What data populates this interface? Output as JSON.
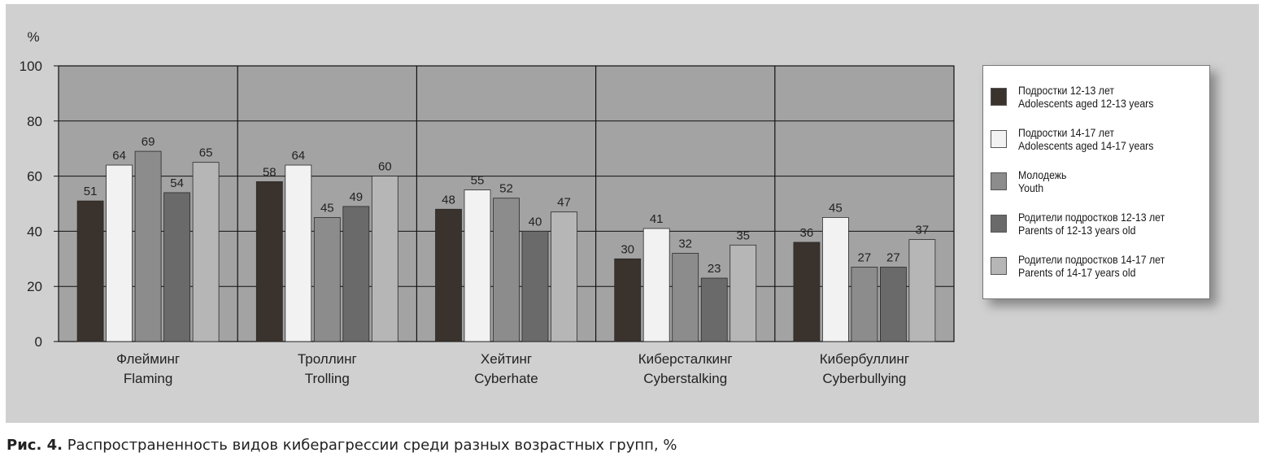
{
  "caption": {
    "label": "Рис. 4.",
    "text": "Распространенность видов киберагрессии среди разных возрастных групп, %"
  },
  "chart_data": {
    "type": "bar",
    "title": "",
    "ylabel": "%",
    "xlabel": "",
    "ylim": [
      0,
      100
    ],
    "yticks": [
      0,
      20,
      40,
      60,
      80,
      100
    ],
    "grid": true,
    "legend_position": "right",
    "categories": [
      {
        "ru": "Флейминг",
        "en": "Flaming"
      },
      {
        "ru": "Троллинг",
        "en": "Trolling"
      },
      {
        "ru": "Хейтинг",
        "en": "Cyberhate"
      },
      {
        "ru": "Киберсталкинг",
        "en": "Cyberstalking"
      },
      {
        "ru": "Кибербуллинг",
        "en": "Cyberbullying"
      }
    ],
    "series": [
      {
        "name_ru": "Подростки 12-13 лет",
        "name_en": "Adolescents aged 12-13 years",
        "color": "#3a322c",
        "values": [
          51,
          58,
          48,
          30,
          36
        ]
      },
      {
        "name_ru": "Подростки 14-17 лет",
        "name_en": "Adolescents aged 14-17 years",
        "color": "#f2f2f2",
        "values": [
          64,
          64,
          55,
          41,
          45
        ]
      },
      {
        "name_ru": "Молодежь",
        "name_en": "Youth",
        "color": "#8c8c8c",
        "values": [
          69,
          45,
          52,
          32,
          27
        ]
      },
      {
        "name_ru": "Родители подростков 12-13 лет",
        "name_en": "Parents of 12-13 years old",
        "color": "#6a6a6a",
        "values": [
          54,
          49,
          40,
          23,
          27
        ]
      },
      {
        "name_ru": "Родители подростков 14-17 лет",
        "name_en": "Parents of 14-17 years old",
        "color": "#b6b6b6",
        "values": [
          65,
          60,
          47,
          35,
          37
        ]
      }
    ]
  }
}
